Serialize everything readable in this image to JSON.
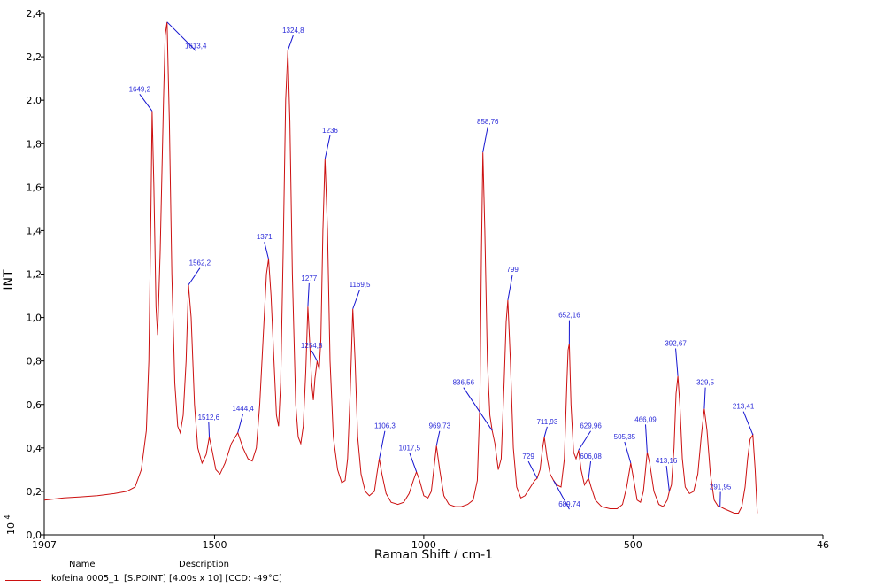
{
  "chart_data": {
    "type": "line",
    "xlabel": "Raman Shift / cm-1",
    "ylabel": "INT",
    "y_multiplier": "10",
    "y_multiplier_exp": "4",
    "xlim": [
      1907,
      46
    ],
    "ylim": [
      0,
      2.4
    ],
    "x_ticks": [
      {
        "value": 1907,
        "label": "1907"
      },
      {
        "value": 1500,
        "label": "1500"
      },
      {
        "value": 1000,
        "label": "1000"
      },
      {
        "value": 500,
        "label": "500"
      },
      {
        "value": 46,
        "label": "46"
      }
    ],
    "y_ticks": [
      {
        "value": 0.0,
        "label": "0,0"
      },
      {
        "value": 0.2,
        "label": "0,2"
      },
      {
        "value": 0.4,
        "label": "0,4"
      },
      {
        "value": 0.6,
        "label": "0,6"
      },
      {
        "value": 0.8,
        "label": "0,8"
      },
      {
        "value": 1.0,
        "label": "1,0"
      },
      {
        "value": 1.2,
        "label": "1,2"
      },
      {
        "value": 1.4,
        "label": "1,4"
      },
      {
        "value": 1.6,
        "label": "1,6"
      },
      {
        "value": 1.8,
        "label": "1,8"
      },
      {
        "value": 2.0,
        "label": "2,0"
      },
      {
        "value": 2.2,
        "label": "2,2"
      },
      {
        "value": 2.4,
        "label": "2,4"
      }
    ],
    "grid": false,
    "baseline": 0.16,
    "end_x": 215,
    "series": [
      {
        "name": "kofeina 0005_1",
        "description": "[S.POINT] [4.00s x 10] [CCD: -49°C]",
        "color": "#cc1010",
        "data": [
          [
            1907,
            0.16
          ],
          [
            1860,
            0.17
          ],
          [
            1820,
            0.175
          ],
          [
            1780,
            0.18
          ],
          [
            1740,
            0.19
          ],
          [
            1710,
            0.2
          ],
          [
            1690,
            0.22
          ],
          [
            1675,
            0.3
          ],
          [
            1663,
            0.48
          ],
          [
            1657,
            0.8
          ],
          [
            1652,
            1.5
          ],
          [
            1649.2,
            1.95
          ],
          [
            1645,
            1.6
          ],
          [
            1640,
            1.05
          ],
          [
            1636,
            0.92
          ],
          [
            1630,
            1.3
          ],
          [
            1622,
            2.0
          ],
          [
            1618,
            2.3
          ],
          [
            1613.4,
            2.36
          ],
          [
            1608,
            1.9
          ],
          [
            1602,
            1.2
          ],
          [
            1595,
            0.7
          ],
          [
            1588,
            0.5
          ],
          [
            1582,
            0.47
          ],
          [
            1575,
            0.55
          ],
          [
            1568,
            0.8
          ],
          [
            1562.2,
            1.15
          ],
          [
            1556,
            1.0
          ],
          [
            1548,
            0.6
          ],
          [
            1540,
            0.4
          ],
          [
            1530,
            0.33
          ],
          [
            1520,
            0.37
          ],
          [
            1512.6,
            0.45
          ],
          [
            1505,
            0.38
          ],
          [
            1497,
            0.3
          ],
          [
            1487,
            0.28
          ],
          [
            1475,
            0.33
          ],
          [
            1460,
            0.42
          ],
          [
            1444.4,
            0.47
          ],
          [
            1432,
            0.4
          ],
          [
            1420,
            0.35
          ],
          [
            1410,
            0.34
          ],
          [
            1400,
            0.4
          ],
          [
            1392,
            0.6
          ],
          [
            1384,
            0.9
          ],
          [
            1376,
            1.2
          ],
          [
            1371,
            1.27
          ],
          [
            1365,
            1.1
          ],
          [
            1358,
            0.8
          ],
          [
            1352,
            0.55
          ],
          [
            1347,
            0.5
          ],
          [
            1342,
            0.7
          ],
          [
            1336,
            1.3
          ],
          [
            1330,
            2.0
          ],
          [
            1324.8,
            2.23
          ],
          [
            1320,
            1.9
          ],
          [
            1314,
            1.2
          ],
          [
            1306,
            0.6
          ],
          [
            1300,
            0.45
          ],
          [
            1294,
            0.42
          ],
          [
            1288,
            0.5
          ],
          [
            1282,
            0.75
          ],
          [
            1277,
            1.05
          ],
          [
            1273,
            0.9
          ],
          [
            1268,
            0.7
          ],
          [
            1264,
            0.62
          ],
          [
            1260,
            0.72
          ],
          [
            1254.8,
            0.8
          ],
          [
            1250,
            0.76
          ],
          [
            1246,
            0.9
          ],
          [
            1241,
            1.4
          ],
          [
            1236,
            1.73
          ],
          [
            1230,
            1.4
          ],
          [
            1224,
            0.8
          ],
          [
            1216,
            0.45
          ],
          [
            1206,
            0.3
          ],
          [
            1196,
            0.24
          ],
          [
            1188,
            0.25
          ],
          [
            1182,
            0.35
          ],
          [
            1176,
            0.65
          ],
          [
            1169.5,
            1.04
          ],
          [
            1164,
            0.8
          ],
          [
            1158,
            0.45
          ],
          [
            1150,
            0.28
          ],
          [
            1140,
            0.2
          ],
          [
            1130,
            0.18
          ],
          [
            1118,
            0.2
          ],
          [
            1112,
            0.28
          ],
          [
            1106.3,
            0.35
          ],
          [
            1100,
            0.28
          ],
          [
            1090,
            0.19
          ],
          [
            1078,
            0.15
          ],
          [
            1062,
            0.14
          ],
          [
            1048,
            0.15
          ],
          [
            1035,
            0.19
          ],
          [
            1025,
            0.25
          ],
          [
            1017.5,
            0.29
          ],
          [
            1010,
            0.25
          ],
          [
            1000,
            0.18
          ],
          [
            990,
            0.17
          ],
          [
            982,
            0.2
          ],
          [
            976,
            0.3
          ],
          [
            969.73,
            0.41
          ],
          [
            962,
            0.3
          ],
          [
            952,
            0.18
          ],
          [
            940,
            0.14
          ],
          [
            925,
            0.13
          ],
          [
            910,
            0.13
          ],
          [
            895,
            0.14
          ],
          [
            882,
            0.16
          ],
          [
            872,
            0.25
          ],
          [
            866,
            0.6
          ],
          [
            862,
            1.3
          ],
          [
            858.76,
            1.76
          ],
          [
            854,
            1.4
          ],
          [
            848,
            0.8
          ],
          [
            842,
            0.55
          ],
          [
            836.56,
            0.48
          ],
          [
            830,
            0.42
          ],
          [
            822,
            0.3
          ],
          [
            815,
            0.35
          ],
          [
            808,
            0.7
          ],
          [
            803,
            0.98
          ],
          [
            799,
            1.08
          ],
          [
            793,
            0.8
          ],
          [
            786,
            0.4
          ],
          [
            778,
            0.22
          ],
          [
            768,
            0.17
          ],
          [
            758,
            0.18
          ],
          [
            745,
            0.22
          ],
          [
            735,
            0.25
          ],
          [
            729,
            0.26
          ],
          [
            722,
            0.3
          ],
          [
            716,
            0.4
          ],
          [
            711.93,
            0.45
          ],
          [
            705,
            0.35
          ],
          [
            698,
            0.28
          ],
          [
            689.74,
            0.25
          ],
          [
            682,
            0.23
          ],
          [
            672,
            0.22
          ],
          [
            664,
            0.35
          ],
          [
            658,
            0.7
          ],
          [
            655,
            0.85
          ],
          [
            652.16,
            0.88
          ],
          [
            648,
            0.6
          ],
          [
            642,
            0.38
          ],
          [
            636,
            0.35
          ],
          [
            629.96,
            0.39
          ],
          [
            624,
            0.3
          ],
          [
            616,
            0.23
          ],
          [
            610,
            0.25
          ],
          [
            606.08,
            0.26
          ],
          [
            600,
            0.22
          ],
          [
            590,
            0.16
          ],
          [
            575,
            0.13
          ],
          [
            555,
            0.12
          ],
          [
            538,
            0.12
          ],
          [
            525,
            0.14
          ],
          [
            515,
            0.22
          ],
          [
            505.35,
            0.33
          ],
          [
            498,
            0.25
          ],
          [
            490,
            0.16
          ],
          [
            482,
            0.15
          ],
          [
            475,
            0.2
          ],
          [
            470,
            0.3
          ],
          [
            466.09,
            0.38
          ],
          [
            460,
            0.33
          ],
          [
            450,
            0.2
          ],
          [
            438,
            0.14
          ],
          [
            428,
            0.13
          ],
          [
            418,
            0.16
          ],
          [
            413.16,
            0.2
          ],
          [
            408,
            0.23
          ],
          [
            402,
            0.4
          ],
          [
            397,
            0.65
          ],
          [
            392.67,
            0.73
          ],
          [
            388,
            0.6
          ],
          [
            382,
            0.35
          ],
          [
            375,
            0.22
          ],
          [
            365,
            0.19
          ],
          [
            355,
            0.2
          ],
          [
            345,
            0.28
          ],
          [
            337,
            0.45
          ],
          [
            329.5,
            0.58
          ],
          [
            323,
            0.48
          ],
          [
            315,
            0.28
          ],
          [
            306,
            0.16
          ],
          [
            296,
            0.13
          ],
          [
            291.95,
            0.13
          ],
          [
            282,
            0.12
          ],
          [
            270,
            0.11
          ],
          [
            258,
            0.1
          ],
          [
            248,
            0.1
          ],
          [
            240,
            0.13
          ],
          [
            232,
            0.22
          ],
          [
            226,
            0.35
          ],
          [
            220,
            0.44
          ],
          [
            213.41,
            0.46
          ],
          [
            208,
            0.3
          ],
          [
            203,
            0.1
          ]
        ]
      }
    ],
    "annotations": [
      {
        "x": 1613.4,
        "y": 2.36,
        "text": "1613,4",
        "lx": 1545,
        "ly": 2.24
      },
      {
        "x": 1649.2,
        "y": 1.95,
        "text": "1649,2",
        "lx": 1679,
        "ly": 2.04
      },
      {
        "x": 1562.2,
        "y": 1.15,
        "text": "1562,2",
        "lx": 1535,
        "ly": 1.24
      },
      {
        "x": 1512.6,
        "y": 0.45,
        "text": "1512,6",
        "lx": 1514,
        "ly": 0.53
      },
      {
        "x": 1444.4,
        "y": 0.47,
        "text": "1444,4",
        "lx": 1432,
        "ly": 0.57
      },
      {
        "x": 1371,
        "y": 1.27,
        "text": "1371",
        "lx": 1381,
        "ly": 1.36
      },
      {
        "x": 1324.8,
        "y": 2.23,
        "text": "1324,8",
        "lx": 1312,
        "ly": 2.31
      },
      {
        "x": 1277,
        "y": 1.05,
        "text": "1277",
        "lx": 1274,
        "ly": 1.17
      },
      {
        "x": 1254.8,
        "y": 0.8,
        "text": "1254,8",
        "lx": 1268,
        "ly": 0.86
      },
      {
        "x": 1236,
        "y": 1.73,
        "text": "1236",
        "lx": 1224,
        "ly": 1.85
      },
      {
        "x": 1169.5,
        "y": 1.04,
        "text": "1169,5",
        "lx": 1153,
        "ly": 1.14
      },
      {
        "x": 1106.3,
        "y": 0.35,
        "text": "1106,3",
        "lx": 1093,
        "ly": 0.49
      },
      {
        "x": 1017.5,
        "y": 0.29,
        "text": "1017,5",
        "lx": 1034,
        "ly": 0.39
      },
      {
        "x": 969.73,
        "y": 0.41,
        "text": "969,73",
        "lx": 962,
        "ly": 0.49
      },
      {
        "x": 858.76,
        "y": 1.76,
        "text": "858,76",
        "lx": 847,
        "ly": 1.89
      },
      {
        "x": 836.56,
        "y": 0.48,
        "text": "836,56",
        "lx": 905,
        "ly": 0.69
      },
      {
        "x": 799,
        "y": 1.08,
        "text": "799",
        "lx": 788,
        "ly": 1.21
      },
      {
        "x": 729,
        "y": 0.26,
        "text": "729",
        "lx": 750,
        "ly": 0.35
      },
      {
        "x": 711.93,
        "y": 0.45,
        "text": "711,93",
        "lx": 705,
        "ly": 0.51
      },
      {
        "x": 689.74,
        "y": 0.25,
        "text": "689,74",
        "lx": 652,
        "ly": 0.13
      },
      {
        "x": 652.16,
        "y": 0.88,
        "text": "652,16",
        "lx": 652,
        "ly": 1.0
      },
      {
        "x": 629.96,
        "y": 0.39,
        "text": "629,96",
        "lx": 601,
        "ly": 0.49
      },
      {
        "x": 606.08,
        "y": 0.26,
        "text": "606,08",
        "lx": 601,
        "ly": 0.35
      },
      {
        "x": 505.35,
        "y": 0.33,
        "text": "505,35",
        "lx": 520,
        "ly": 0.44
      },
      {
        "x": 466.09,
        "y": 0.38,
        "text": "466,09",
        "lx": 470,
        "ly": 0.52
      },
      {
        "x": 413.16,
        "y": 0.2,
        "text": "413,16",
        "lx": 420,
        "ly": 0.33
      },
      {
        "x": 392.67,
        "y": 0.73,
        "text": "392,67",
        "lx": 398,
        "ly": 0.87
      },
      {
        "x": 329.5,
        "y": 0.58,
        "text": "329,5",
        "lx": 327,
        "ly": 0.69
      },
      {
        "x": 291.95,
        "y": 0.13,
        "text": "291,95",
        "lx": 291,
        "ly": 0.21
      },
      {
        "x": 213.41,
        "y": 0.46,
        "text": "213,41",
        "lx": 236,
        "ly": 0.58
      }
    ]
  },
  "legend": {
    "name_header": "Name",
    "description_header": "Description",
    "entry_name": "kofeina 0005_1",
    "entry_description": "[S.POINT] [4.00s x 10] [CCD: -49°C]"
  }
}
